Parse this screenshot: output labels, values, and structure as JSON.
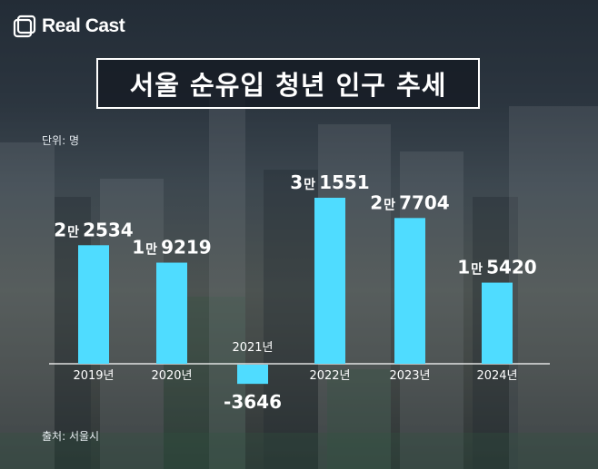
{
  "brand": {
    "name": "Real Cast"
  },
  "title": "서울 순유입 청년 인구 추세",
  "unit_note": "단위: 명",
  "source_note": "출처: 서울시",
  "colors": {
    "bar": "#4fdcff",
    "text": "#ffffff",
    "title_bg": "#141a22"
  },
  "chart_data": {
    "type": "bar",
    "title": "서울 순유입 청년 인구 추세",
    "categories": [
      "2019년",
      "2020년",
      "2021년",
      "2022년",
      "2023년",
      "2024년"
    ],
    "values": [
      22534,
      19219,
      -3646,
      31551,
      27704,
      15420
    ],
    "labels": [
      {
        "big": "2",
        "man": "만",
        "rest": "2534"
      },
      {
        "big": "1",
        "man": "만",
        "rest": "9219"
      },
      {
        "big": "",
        "man": "",
        "rest": "-3646"
      },
      {
        "big": "3",
        "man": "만",
        "rest": "1551"
      },
      {
        "big": "2",
        "man": "만",
        "rest": "7704"
      },
      {
        "big": "1",
        "man": "만",
        "rest": "5420"
      }
    ],
    "xlabel": "",
    "ylabel": "",
    "unit": "명",
    "grid": false,
    "legend": "none"
  }
}
